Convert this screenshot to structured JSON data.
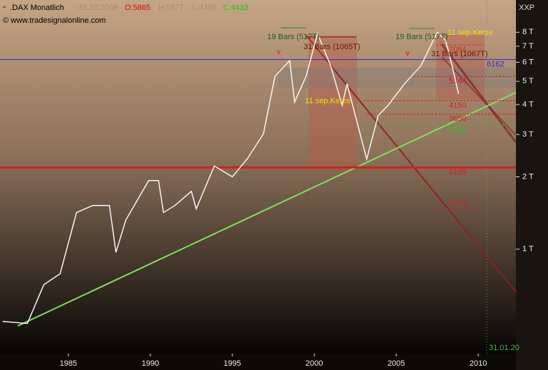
{
  "chart_data": {
    "type": "line",
    "title": ".DAX Monatlich",
    "date": "31.10.2008",
    "ohlc": [
      "O:5865",
      "H:5877",
      "L:4365",
      "C:4433"
    ],
    "source": "© www.tradesignalonline.com",
    "corner_label": "XXP",
    "cursor_label": "31.01.20",
    "log_scale": true,
    "color": "#f4f4f4",
    "x": [
      1981.0,
      1982.5,
      1983.5,
      1984.5,
      1985.5,
      1986.5,
      1987.5,
      1987.9,
      1988.5,
      1989.9,
      1990.5,
      1990.8,
      1991.5,
      1992.5,
      1992.8,
      1993.9,
      1995.0,
      1995.9,
      1996.9,
      1997.6,
      1998.5,
      1998.8,
      1999.5,
      2000.2,
      2001.0,
      2001.7,
      2002.0,
      2003.2,
      2003.9,
      2004.5,
      2005.5,
      2006.5,
      2007.5,
      2008.0,
      2008.3,
      2008.8
    ],
    "values": [
      0.5,
      0.49,
      0.71,
      0.79,
      1.42,
      1.52,
      1.52,
      0.97,
      1.32,
      1.93,
      1.93,
      1.42,
      1.52,
      1.74,
      1.47,
      2.22,
      2.0,
      2.37,
      3.02,
      5.24,
      6.1,
      4.1,
      5.24,
      7.9,
      5.8,
      3.97,
      4.88,
      2.37,
      3.6,
      3.97,
      4.88,
      5.8,
      8.0,
      7.4,
      6.2,
      4.43
    ],
    "xlim": [
      1980.83,
      2012.3
    ],
    "xticks": [
      1985,
      1990,
      1995,
      2000,
      2005,
      2010
    ],
    "ylim": [
      0.367,
      10.9
    ],
    "yticks": [
      {
        "value": 1,
        "label": "1 T"
      },
      {
        "value": 2,
        "label": "2 T"
      },
      {
        "value": 3,
        "label": "3 T"
      },
      {
        "value": 4,
        "label": "4 T"
      },
      {
        "value": 5,
        "label": "5 T"
      },
      {
        "value": 6,
        "label": "6 T"
      },
      {
        "value": 7,
        "label": "7 T"
      },
      {
        "value": 8,
        "label": "8 T"
      }
    ],
    "levels": [
      {
        "value": 7.084,
        "label": "7084",
        "color": "#c0392b"
      },
      {
        "value": 6.162,
        "label": "6162",
        "color": "#2a2ad0"
      },
      {
        "value": 5.244,
        "label": "5244",
        "color": "#d02020"
      },
      {
        "value": 4.15,
        "label": "4150",
        "color": "#d02020"
      },
      {
        "value": 3.65,
        "label": "3650",
        "color": "#d02020"
      },
      {
        "value": 3.289,
        "label": "3289",
        "color": "#30c030"
      },
      {
        "value": 2.189,
        "label": "2189",
        "color": "#d02020"
      },
      {
        "value": 1.479,
        "label": "1479",
        "color": "#d02020"
      }
    ],
    "annotations": [
      "19 Bars (517T)",
      "31 Bars (1065T)",
      "11.sep.Kerze",
      "19 Bars (517T)",
      "31 Bars (1067T)",
      "11.sep.Kerze"
    ]
  }
}
